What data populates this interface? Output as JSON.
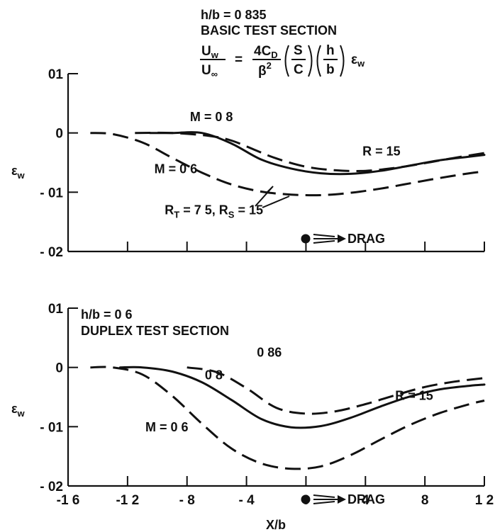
{
  "chart_data": [
    {
      "type": "line",
      "title_lines": [
        "h/b = 0 835",
        "BASIC TEST SECTION"
      ],
      "equation": {
        "lhs_num": "U",
        "lhs_num_sub": "w",
        "lhs_den": "U",
        "lhs_den_sub": "∞",
        "eq": "=",
        "rhs_num": "4C",
        "rhs_num_sub": "D",
        "rhs_den": "β",
        "rhs_den_sup": "2",
        "f1_num": "S",
        "f1_den": "C",
        "f2_num": "h",
        "f2_den": "b",
        "eps": "ε",
        "eps_sub": "w"
      },
      "ylabel": "ε",
      "ylabel_sub": "w",
      "xlim": [
        -16,
        12
      ],
      "ylim": [
        -0.02,
        0.01
      ],
      "yticks": [
        0.01,
        0,
        -0.01,
        -0.02
      ],
      "ytick_labels": [
        "01",
        "0",
        "- 01",
        "- 02"
      ],
      "xticks": [
        -16,
        -12,
        -8,
        -4,
        0,
        4,
        8,
        12
      ],
      "series": [
        {
          "style": "dashed",
          "x": [
            -11.5,
            -9,
            -6.5,
            -5,
            -3.5,
            -2,
            0,
            2,
            4,
            6,
            8,
            10,
            12
          ],
          "y": [
            0,
            0,
            -0.0005,
            -0.0013,
            -0.0028,
            -0.0043,
            -0.0057,
            -0.0063,
            -0.0064,
            -0.0059,
            -0.0051,
            -0.0042,
            -0.0034
          ]
        },
        {
          "style": "solid",
          "x": [
            -10.5,
            -9,
            -7,
            -5,
            -3,
            -1,
            1,
            3,
            5,
            7,
            9,
            11,
            12
          ],
          "y": [
            0,
            0,
            0,
            -0.0018,
            -0.0045,
            -0.006,
            -0.0068,
            -0.0069,
            -0.0064,
            -0.0055,
            -0.0046,
            -0.004,
            -0.0037
          ]
        },
        {
          "style": "dashed",
          "x": [
            -14.5,
            -13,
            -11,
            -9,
            -7,
            -5,
            -3,
            -1,
            1,
            3,
            5,
            7,
            9,
            11,
            12
          ],
          "y": [
            0,
            -0.0002,
            -0.0016,
            -0.0042,
            -0.0067,
            -0.0087,
            -0.0099,
            -0.0104,
            -0.0105,
            -0.0101,
            -0.0094,
            -0.0085,
            -0.0076,
            -0.0068,
            -0.0065
          ]
        }
      ],
      "annotations": [
        {
          "text": "M = 0 8",
          "x": -7.8,
          "y": 0.002
        },
        {
          "text": "R = 15",
          "x": 3.8,
          "y": -0.0038
        },
        {
          "text": "M = 0 6",
          "x": -10.2,
          "y": -0.0068
        },
        {
          "text": "R",
          "sub": "T",
          "rest": " = 7 5, R",
          "sub2": "S",
          "rest2": " = 15",
          "x": -9.5,
          "y": -0.0137
        }
      ],
      "marker_label": "DRAG"
    },
    {
      "type": "line",
      "title_lines": [
        "h/b = 0 6",
        "DUPLEX TEST SECTION"
      ],
      "ylabel": "ε",
      "ylabel_sub": "w",
      "xlabel": "X/b",
      "xlim": [
        -16,
        12
      ],
      "ylim": [
        -0.02,
        0.01
      ],
      "yticks": [
        0.01,
        0,
        -0.01,
        -0.02
      ],
      "ytick_labels": [
        "01",
        "0",
        "- 01",
        "- 02"
      ],
      "xticks": [
        -16,
        -12,
        -8,
        -4,
        0,
        4,
        8,
        12
      ],
      "xtick_labels": [
        "-1 6",
        "-1 2",
        "- 8",
        "- 4",
        "0",
        "4",
        "8",
        "1 2"
      ],
      "series": [
        {
          "style": "dashed",
          "x": [
            -8,
            -6,
            -4,
            -2,
            0,
            2,
            4,
            6,
            8,
            10,
            12
          ],
          "y": [
            0,
            -0.0008,
            -0.0035,
            -0.0068,
            -0.0078,
            -0.0074,
            -0.0062,
            -0.0047,
            -0.0033,
            -0.0024,
            -0.0018
          ]
        },
        {
          "style": "solid",
          "x": [
            -12.5,
            -11,
            -9,
            -7,
            -5,
            -3,
            -1,
            1,
            3,
            5,
            7,
            9,
            11,
            12
          ],
          "y": [
            0,
            0,
            -0.0007,
            -0.0025,
            -0.0055,
            -0.0087,
            -0.0101,
            -0.0099,
            -0.0085,
            -0.0066,
            -0.0049,
            -0.0037,
            -0.0031,
            -0.0029
          ]
        },
        {
          "style": "dashed",
          "x": [
            -14.5,
            -13,
            -11,
            -9,
            -7,
            -5,
            -3,
            -1,
            1,
            3,
            5,
            7,
            9,
            11,
            12
          ],
          "y": [
            0,
            0,
            -0.0012,
            -0.0048,
            -0.0095,
            -0.0137,
            -0.0162,
            -0.0171,
            -0.0167,
            -0.0148,
            -0.0122,
            -0.0097,
            -0.0077,
            -0.0062,
            -0.0056
          ]
        }
      ],
      "annotations": [
        {
          "text": "0 86",
          "x": -3.3,
          "y": 0.0018
        },
        {
          "text": "0 8",
          "x": -6.8,
          "y": -0.002
        },
        {
          "text": "R = 15",
          "x": 6,
          "y": -0.0055
        },
        {
          "text": "M = 0 6",
          "x": -10.8,
          "y": -0.0108
        }
      ],
      "marker_label": "DRAG"
    }
  ]
}
